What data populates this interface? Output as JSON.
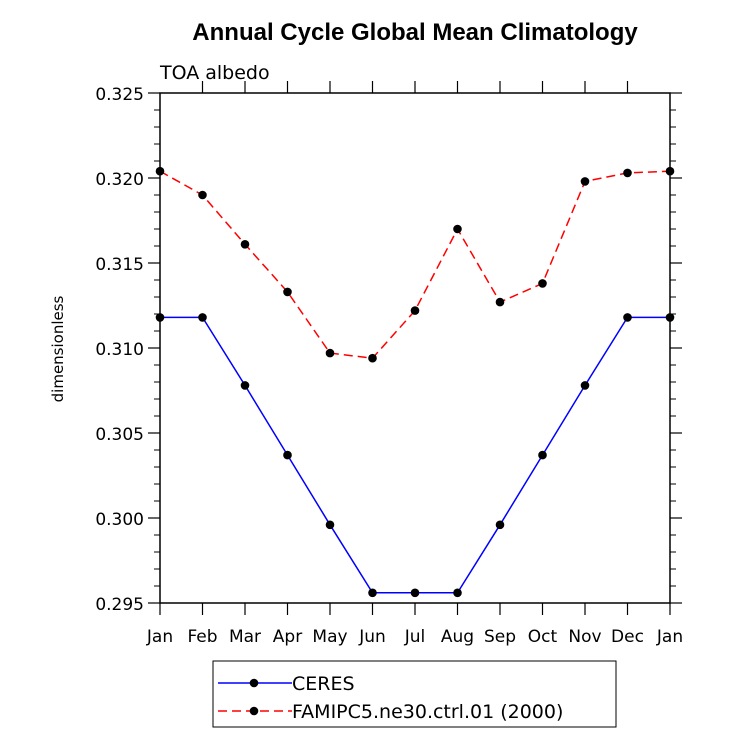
{
  "chart_data": {
    "type": "line",
    "title": "Annual Cycle Global Mean Climatology",
    "subtitle": "TOA albedo",
    "xlabel": "",
    "ylabel": "dimensionless",
    "categories": [
      "Jan",
      "Feb",
      "Mar",
      "Apr",
      "May",
      "Jun",
      "Jul",
      "Aug",
      "Sep",
      "Oct",
      "Nov",
      "Dec",
      "Jan"
    ],
    "ylim": [
      0.295,
      0.325
    ],
    "yticks": [
      "0.295",
      "0.300",
      "0.305",
      "0.310",
      "0.315",
      "0.320",
      "0.325"
    ],
    "series": [
      {
        "name": "CERES",
        "color": "#0000ff",
        "style": "solid",
        "marker": "dot",
        "values": [
          0.3118,
          0.3118,
          0.3078,
          0.3037,
          0.2996,
          0.2956,
          0.2956,
          0.2956,
          0.2996,
          0.3037,
          0.3078,
          0.3118,
          0.3118
        ]
      },
      {
        "name": "FAMIPC5.ne30.ctrl.01 (2000)",
        "color": "#ff0000",
        "style": "dashed",
        "marker": "dot",
        "values": [
          0.3204,
          0.319,
          0.3161,
          0.3133,
          0.3097,
          0.3094,
          0.3122,
          0.317,
          0.3127,
          0.3138,
          0.3198,
          0.3203,
          0.3204
        ]
      }
    ],
    "grid": false,
    "legend": "bottom-center"
  }
}
